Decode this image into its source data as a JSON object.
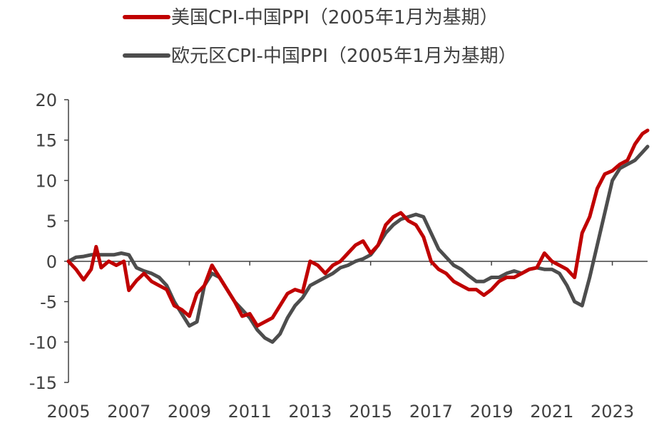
{
  "chart_data": {
    "type": "line",
    "title": "",
    "xlabel": "",
    "ylabel": "",
    "ylim": [
      -15,
      20
    ],
    "xlim": [
      "2005-01",
      "2024-03"
    ],
    "y_ticks": [
      "20",
      "15",
      "10",
      "5",
      "0",
      "-5",
      "-10",
      "-15"
    ],
    "x_ticks": [
      "2005",
      "2007",
      "2009",
      "2011",
      "2013",
      "2015",
      "2017",
      "2019",
      "2021",
      "2023"
    ],
    "grid": false,
    "legend_position": "top",
    "series": [
      {
        "name": "美国CPI-中国PPI（2005年1月为基期）",
        "color": "#c00000",
        "points": [
          [
            "2005-01",
            0
          ],
          [
            "2005-04",
            -1.0
          ],
          [
            "2005-07",
            -2.3
          ],
          [
            "2005-10",
            -1.0
          ],
          [
            "2005-12",
            1.8
          ],
          [
            "2006-02",
            -0.8
          ],
          [
            "2006-05",
            0
          ],
          [
            "2006-08",
            -0.5
          ],
          [
            "2006-11",
            0
          ],
          [
            "2007-01",
            -3.6
          ],
          [
            "2007-04",
            -2.4
          ],
          [
            "2007-07",
            -1.5
          ],
          [
            "2007-10",
            -2.5
          ],
          [
            "2008-01",
            -3.0
          ],
          [
            "2008-04",
            -3.5
          ],
          [
            "2008-07",
            -5.5
          ],
          [
            "2008-10",
            -6.0
          ],
          [
            "2009-01",
            -6.8
          ],
          [
            "2009-04",
            -4.0
          ],
          [
            "2009-07",
            -3.0
          ],
          [
            "2009-10",
            -0.5
          ],
          [
            "2010-01",
            -2.0
          ],
          [
            "2010-04",
            -3.5
          ],
          [
            "2010-07",
            -5.0
          ],
          [
            "2010-10",
            -6.8
          ],
          [
            "2011-01",
            -6.5
          ],
          [
            "2011-04",
            -8.0
          ],
          [
            "2011-07",
            -7.5
          ],
          [
            "2011-10",
            -7.0
          ],
          [
            "2012-01",
            -5.5
          ],
          [
            "2012-04",
            -4.0
          ],
          [
            "2012-07",
            -3.5
          ],
          [
            "2012-10",
            -3.8
          ],
          [
            "2013-01",
            0
          ],
          [
            "2013-04",
            -0.5
          ],
          [
            "2013-07",
            -1.5
          ],
          [
            "2013-10",
            -0.5
          ],
          [
            "2014-01",
            0
          ],
          [
            "2014-04",
            1.0
          ],
          [
            "2014-07",
            2.0
          ],
          [
            "2014-10",
            2.5
          ],
          [
            "2015-01",
            1.0
          ],
          [
            "2015-04",
            2.0
          ],
          [
            "2015-07",
            4.5
          ],
          [
            "2015-10",
            5.5
          ],
          [
            "2016-01",
            6.0
          ],
          [
            "2016-04",
            5.0
          ],
          [
            "2016-07",
            4.5
          ],
          [
            "2016-10",
            3.0
          ],
          [
            "2017-01",
            0
          ],
          [
            "2017-04",
            -1.0
          ],
          [
            "2017-07",
            -1.5
          ],
          [
            "2017-10",
            -2.5
          ],
          [
            "2018-01",
            -3.0
          ],
          [
            "2018-04",
            -3.5
          ],
          [
            "2018-07",
            -3.5
          ],
          [
            "2018-10",
            -4.2
          ],
          [
            "2019-01",
            -3.5
          ],
          [
            "2019-04",
            -2.5
          ],
          [
            "2019-07",
            -2.0
          ],
          [
            "2019-10",
            -2.0
          ],
          [
            "2020-01",
            -1.5
          ],
          [
            "2020-04",
            -1.0
          ],
          [
            "2020-07",
            -0.8
          ],
          [
            "2020-10",
            1.0
          ],
          [
            "2021-01",
            0
          ],
          [
            "2021-04",
            -0.5
          ],
          [
            "2021-07",
            -1.0
          ],
          [
            "2021-10",
            -2.0
          ],
          [
            "2022-01",
            3.5
          ],
          [
            "2022-04",
            5.5
          ],
          [
            "2022-07",
            9.0
          ],
          [
            "2022-10",
            10.8
          ],
          [
            "2023-01",
            11.2
          ],
          [
            "2023-04",
            12.0
          ],
          [
            "2023-07",
            12.5
          ],
          [
            "2023-10",
            14.5
          ],
          [
            "2024-01",
            15.8
          ],
          [
            "2024-03",
            16.2
          ]
        ]
      },
      {
        "name": "欧元区CPI-中国PPI（2005年1月为基期）",
        "color": "#4d4d4d",
        "points": [
          [
            "2005-01",
            0
          ],
          [
            "2005-04",
            0.5
          ],
          [
            "2005-07",
            0.6
          ],
          [
            "2005-10",
            0.8
          ],
          [
            "2006-01",
            0.8
          ],
          [
            "2006-04",
            0.8
          ],
          [
            "2006-07",
            0.8
          ],
          [
            "2006-10",
            1.0
          ],
          [
            "2007-01",
            0.8
          ],
          [
            "2007-04",
            -0.8
          ],
          [
            "2007-07",
            -1.2
          ],
          [
            "2007-10",
            -1.5
          ],
          [
            "2008-01",
            -2.0
          ],
          [
            "2008-04",
            -3.0
          ],
          [
            "2008-07",
            -5.0
          ],
          [
            "2008-10",
            -6.5
          ],
          [
            "2009-01",
            -8.0
          ],
          [
            "2009-04",
            -7.5
          ],
          [
            "2009-07",
            -3.0
          ],
          [
            "2009-10",
            -1.5
          ],
          [
            "2010-01",
            -2.0
          ],
          [
            "2010-04",
            -3.5
          ],
          [
            "2010-07",
            -5.0
          ],
          [
            "2010-10",
            -6.0
          ],
          [
            "2011-01",
            -7.0
          ],
          [
            "2011-04",
            -8.5
          ],
          [
            "2011-07",
            -9.5
          ],
          [
            "2011-10",
            -10.0
          ],
          [
            "2012-01",
            -9.0
          ],
          [
            "2012-04",
            -7.0
          ],
          [
            "2012-07",
            -5.5
          ],
          [
            "2012-10",
            -4.5
          ],
          [
            "2013-01",
            -3.0
          ],
          [
            "2013-04",
            -2.5
          ],
          [
            "2013-07",
            -2.0
          ],
          [
            "2013-10",
            -1.5
          ],
          [
            "2014-01",
            -0.8
          ],
          [
            "2014-04",
            -0.5
          ],
          [
            "2014-07",
            0
          ],
          [
            "2014-10",
            0.3
          ],
          [
            "2015-01",
            0.8
          ],
          [
            "2015-04",
            2.0
          ],
          [
            "2015-07",
            3.5
          ],
          [
            "2015-10",
            4.5
          ],
          [
            "2016-01",
            5.2
          ],
          [
            "2016-04",
            5.5
          ],
          [
            "2016-07",
            5.8
          ],
          [
            "2016-10",
            5.5
          ],
          [
            "2017-01",
            3.5
          ],
          [
            "2017-04",
            1.5
          ],
          [
            "2017-07",
            0.5
          ],
          [
            "2017-10",
            -0.5
          ],
          [
            "2018-01",
            -1.0
          ],
          [
            "2018-04",
            -1.8
          ],
          [
            "2018-07",
            -2.5
          ],
          [
            "2018-10",
            -2.5
          ],
          [
            "2019-01",
            -2.0
          ],
          [
            "2019-04",
            -2.0
          ],
          [
            "2019-07",
            -1.5
          ],
          [
            "2019-10",
            -1.2
          ],
          [
            "2020-01",
            -1.5
          ],
          [
            "2020-04",
            -1.0
          ],
          [
            "2020-07",
            -0.8
          ],
          [
            "2020-10",
            -1.0
          ],
          [
            "2021-01",
            -1.0
          ],
          [
            "2021-04",
            -1.5
          ],
          [
            "2021-07",
            -3.0
          ],
          [
            "2021-10",
            -5.0
          ],
          [
            "2022-01",
            -5.5
          ],
          [
            "2022-04",
            -2.0
          ],
          [
            "2022-07",
            2.0
          ],
          [
            "2022-10",
            6.0
          ],
          [
            "2023-01",
            10.0
          ],
          [
            "2023-04",
            11.5
          ],
          [
            "2023-07",
            12.0
          ],
          [
            "2023-10",
            12.5
          ],
          [
            "2024-01",
            13.5
          ],
          [
            "2024-03",
            14.2
          ]
        ]
      }
    ]
  }
}
